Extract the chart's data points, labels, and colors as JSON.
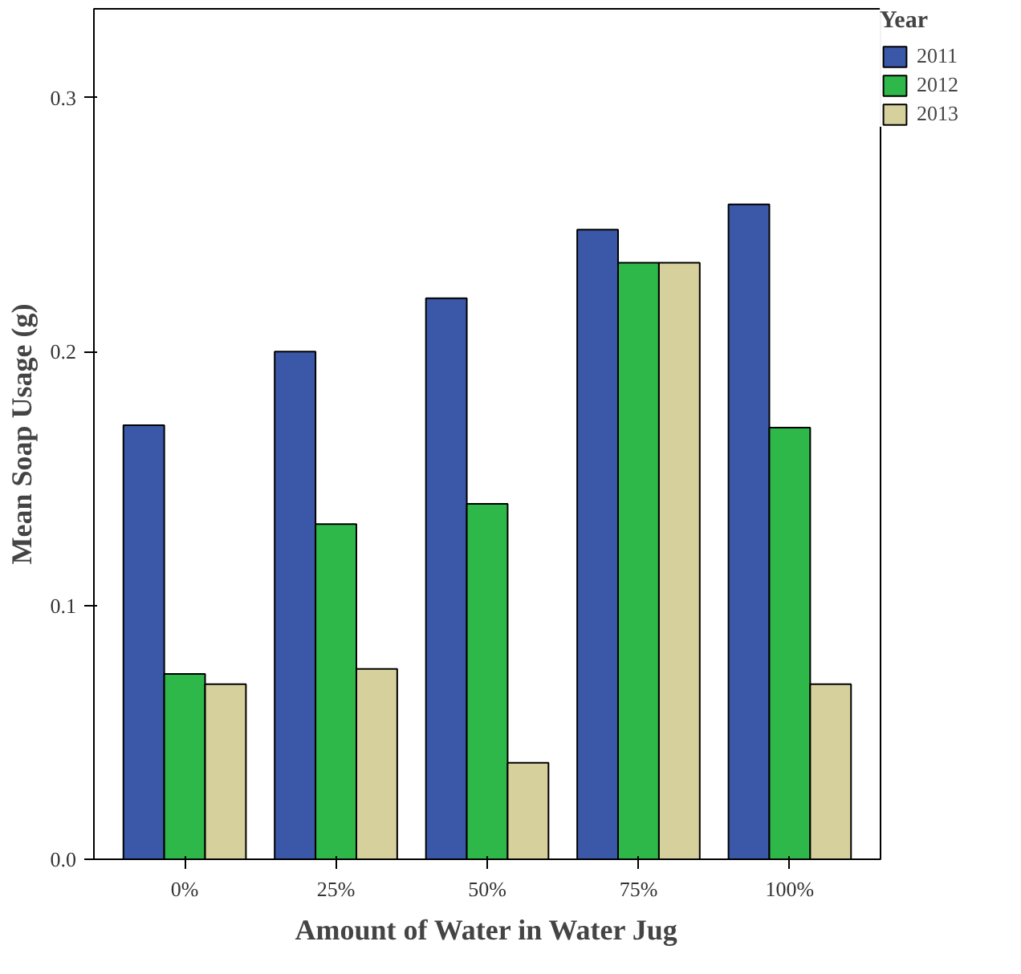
{
  "chart_data": {
    "type": "bar",
    "xlabel": "Amount of Water in Water Jug",
    "ylabel": "Mean Soap Usage (g)",
    "legend_title": "Year",
    "legend": "right",
    "categories": [
      "0%",
      "25%",
      "50%",
      "75%",
      "100%"
    ],
    "series": [
      {
        "name": "2011",
        "color": "#3b57a8",
        "values": [
          0.171,
          0.2,
          0.221,
          0.248,
          0.258
        ]
      },
      {
        "name": "2012",
        "color": "#2fb84a",
        "values": [
          0.073,
          0.132,
          0.14,
          0.235,
          0.17
        ]
      },
      {
        "name": "2013",
        "color": "#d6d09c",
        "values": [
          0.069,
          0.075,
          0.038,
          0.235,
          0.069
        ]
      }
    ],
    "ylim": [
      0,
      0.335
    ],
    "yticks": [
      {
        "value": 0,
        "label": "0.0"
      },
      0.1,
      0.2,
      0.3
    ],
    "grid": false
  }
}
